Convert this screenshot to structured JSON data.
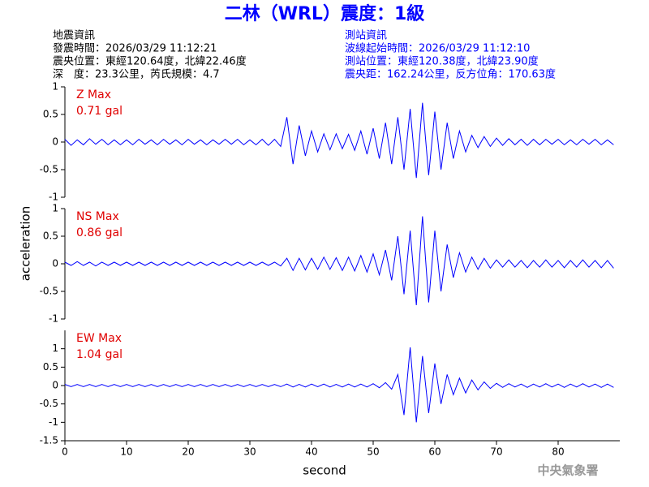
{
  "header": {
    "title": "二林（WRL）震度：1級",
    "left": [
      "地震資訊",
      "發震時間：2026/03/29 11:12:21",
      "震央位置：東經120.64度，北緯22.46度",
      "深　度：23.3公里，芮氏規模：4.7"
    ],
    "right": [
      "測站資訊",
      "波線起始時間：2026/03/29 11:12:10",
      "測站位置：東經120.38度，北緯23.90度",
      "震央距：162.24公里，反方位角：170.63度"
    ],
    "y_label": "acceleration",
    "x_label": "second",
    "footer": "中央氣象署"
  },
  "chart_data": [
    {
      "type": "line",
      "annotations": [
        "Z Max",
        "0.71 gal"
      ],
      "color": "#0000ff",
      "xlim": [
        0,
        90
      ],
      "ylim": [
        -1,
        1
      ],
      "yticks": [
        -1,
        -0.5,
        0,
        0.5,
        1
      ],
      "x": [
        0,
        1,
        2,
        3,
        4,
        5,
        6,
        7,
        8,
        9,
        10,
        11,
        12,
        13,
        14,
        15,
        16,
        17,
        18,
        19,
        20,
        21,
        22,
        23,
        24,
        25,
        26,
        27,
        28,
        29,
        30,
        31,
        32,
        33,
        34,
        35,
        36,
        37,
        38,
        39,
        40,
        41,
        42,
        43,
        44,
        45,
        46,
        47,
        48,
        49,
        50,
        51,
        52,
        53,
        54,
        55,
        56,
        57,
        58,
        59,
        60,
        61,
        62,
        63,
        64,
        65,
        66,
        67,
        68,
        69,
        70,
        71,
        72,
        73,
        74,
        75,
        76,
        77,
        78,
        79,
        80,
        81,
        82,
        83,
        84,
        85,
        86,
        87,
        88,
        89
      ],
      "values": [
        0.05,
        -0.06,
        0.04,
        -0.05,
        0.06,
        -0.04,
        0.05,
        -0.05,
        0.04,
        -0.05,
        0.04,
        -0.05,
        0.05,
        -0.04,
        0.04,
        -0.05,
        0.05,
        -0.04,
        0.04,
        -0.05,
        0.05,
        -0.04,
        0.04,
        -0.05,
        0.04,
        -0.04,
        0.05,
        -0.04,
        0.05,
        -0.05,
        0.04,
        -0.05,
        0.05,
        -0.06,
        0.05,
        -0.08,
        0.45,
        -0.4,
        0.3,
        -0.25,
        0.2,
        -0.18,
        0.15,
        -0.14,
        0.15,
        -0.12,
        0.14,
        -0.15,
        0.2,
        -0.22,
        0.25,
        -0.3,
        0.35,
        -0.4,
        0.45,
        -0.5,
        0.6,
        -0.65,
        0.71,
        -0.6,
        0.55,
        -0.5,
        0.35,
        -0.3,
        0.2,
        -0.18,
        0.12,
        -0.1,
        0.1,
        -0.08,
        0.07,
        -0.06,
        0.06,
        -0.05,
        0.05,
        -0.06,
        0.05,
        -0.05,
        0.05,
        -0.04,
        0.05,
        -0.05,
        0.04,
        -0.05,
        0.05,
        -0.04,
        0.05,
        -0.05,
        0.04,
        -0.05
      ]
    },
    {
      "type": "line",
      "annotations": [
        "NS Max",
        "0.86 gal"
      ],
      "color": "#0000ff",
      "xlim": [
        0,
        90
      ],
      "ylim": [
        -1,
        1
      ],
      "yticks": [
        -1,
        -0.5,
        0,
        0.5,
        1
      ],
      "x": [
        0,
        1,
        2,
        3,
        4,
        5,
        6,
        7,
        8,
        9,
        10,
        11,
        12,
        13,
        14,
        15,
        16,
        17,
        18,
        19,
        20,
        21,
        22,
        23,
        24,
        25,
        26,
        27,
        28,
        29,
        30,
        31,
        32,
        33,
        34,
        35,
        36,
        37,
        38,
        39,
        40,
        41,
        42,
        43,
        44,
        45,
        46,
        47,
        48,
        49,
        50,
        51,
        52,
        53,
        54,
        55,
        56,
        57,
        58,
        59,
        60,
        61,
        62,
        63,
        64,
        65,
        66,
        67,
        68,
        69,
        70,
        71,
        72,
        73,
        74,
        75,
        76,
        77,
        78,
        79,
        80,
        81,
        82,
        83,
        84,
        85,
        86,
        87,
        88,
        89
      ],
      "values": [
        0.03,
        -0.03,
        0.04,
        -0.03,
        0.03,
        -0.04,
        0.03,
        -0.03,
        0.03,
        -0.03,
        0.03,
        -0.03,
        0.03,
        -0.03,
        0.03,
        -0.03,
        0.03,
        -0.03,
        0.03,
        -0.03,
        0.03,
        -0.03,
        0.03,
        -0.03,
        0.03,
        -0.03,
        0.03,
        -0.03,
        0.03,
        -0.03,
        0.03,
        -0.03,
        0.03,
        -0.03,
        0.03,
        -0.04,
        0.1,
        -0.12,
        0.1,
        -0.11,
        0.1,
        -0.1,
        0.12,
        -0.1,
        0.11,
        -0.12,
        0.12,
        -0.13,
        0.15,
        -0.15,
        0.18,
        -0.2,
        0.25,
        -0.3,
        0.5,
        -0.55,
        0.6,
        -0.75,
        0.86,
        -0.7,
        0.6,
        -0.5,
        0.35,
        -0.25,
        0.2,
        -0.15,
        0.12,
        -0.1,
        0.1,
        -0.08,
        0.07,
        -0.06,
        0.07,
        -0.06,
        0.06,
        -0.07,
        0.06,
        -0.06,
        0.07,
        -0.06,
        0.06,
        -0.07,
        0.06,
        -0.06,
        0.07,
        -0.06,
        0.06,
        -0.07,
        0.06,
        -0.08
      ]
    },
    {
      "type": "line",
      "annotations": [
        "EW Max",
        "1.04 gal"
      ],
      "color": "#0000ff",
      "xlim": [
        0,
        90
      ],
      "ylim": [
        -1.5,
        1.5
      ],
      "yticks": [
        -1.5,
        -1,
        -0.5,
        0,
        0.5,
        1
      ],
      "xticks": [
        0,
        10,
        20,
        30,
        40,
        50,
        60,
        70,
        80
      ],
      "x": [
        0,
        1,
        2,
        3,
        4,
        5,
        6,
        7,
        8,
        9,
        10,
        11,
        12,
        13,
        14,
        15,
        16,
        17,
        18,
        19,
        20,
        21,
        22,
        23,
        24,
        25,
        26,
        27,
        28,
        29,
        30,
        31,
        32,
        33,
        34,
        35,
        36,
        37,
        38,
        39,
        40,
        41,
        42,
        43,
        44,
        45,
        46,
        47,
        48,
        49,
        50,
        51,
        52,
        53,
        54,
        55,
        56,
        57,
        58,
        59,
        60,
        61,
        62,
        63,
        64,
        65,
        66,
        67,
        68,
        69,
        70,
        71,
        72,
        73,
        74,
        75,
        76,
        77,
        78,
        79,
        80,
        81,
        82,
        83,
        84,
        85,
        86,
        87,
        88,
        89
      ],
      "values": [
        0.03,
        -0.03,
        0.03,
        -0.03,
        0.03,
        -0.03,
        0.03,
        -0.03,
        0.03,
        -0.03,
        0.03,
        -0.03,
        0.03,
        -0.03,
        0.03,
        -0.03,
        0.03,
        -0.03,
        0.03,
        -0.03,
        0.03,
        -0.03,
        0.03,
        -0.03,
        0.03,
        -0.03,
        0.03,
        -0.03,
        0.03,
        -0.03,
        0.03,
        -0.03,
        0.03,
        -0.03,
        0.03,
        -0.03,
        0.04,
        -0.04,
        0.03,
        -0.04,
        0.04,
        -0.03,
        0.04,
        -0.04,
        0.03,
        -0.04,
        0.04,
        -0.04,
        0.04,
        -0.04,
        0.05,
        -0.06,
        0.08,
        -0.1,
        0.3,
        -0.8,
        1.04,
        -1.0,
        0.8,
        -0.75,
        0.6,
        -0.5,
        0.3,
        -0.25,
        0.2,
        -0.2,
        0.15,
        -0.12,
        0.1,
        -0.08,
        0.06,
        -0.05,
        0.05,
        -0.04,
        0.04,
        -0.05,
        0.04,
        -0.04,
        0.05,
        -0.04,
        0.04,
        -0.05,
        0.04,
        -0.04,
        0.05,
        -0.04,
        0.04,
        -0.05,
        0.04,
        -0.05
      ]
    }
  ]
}
